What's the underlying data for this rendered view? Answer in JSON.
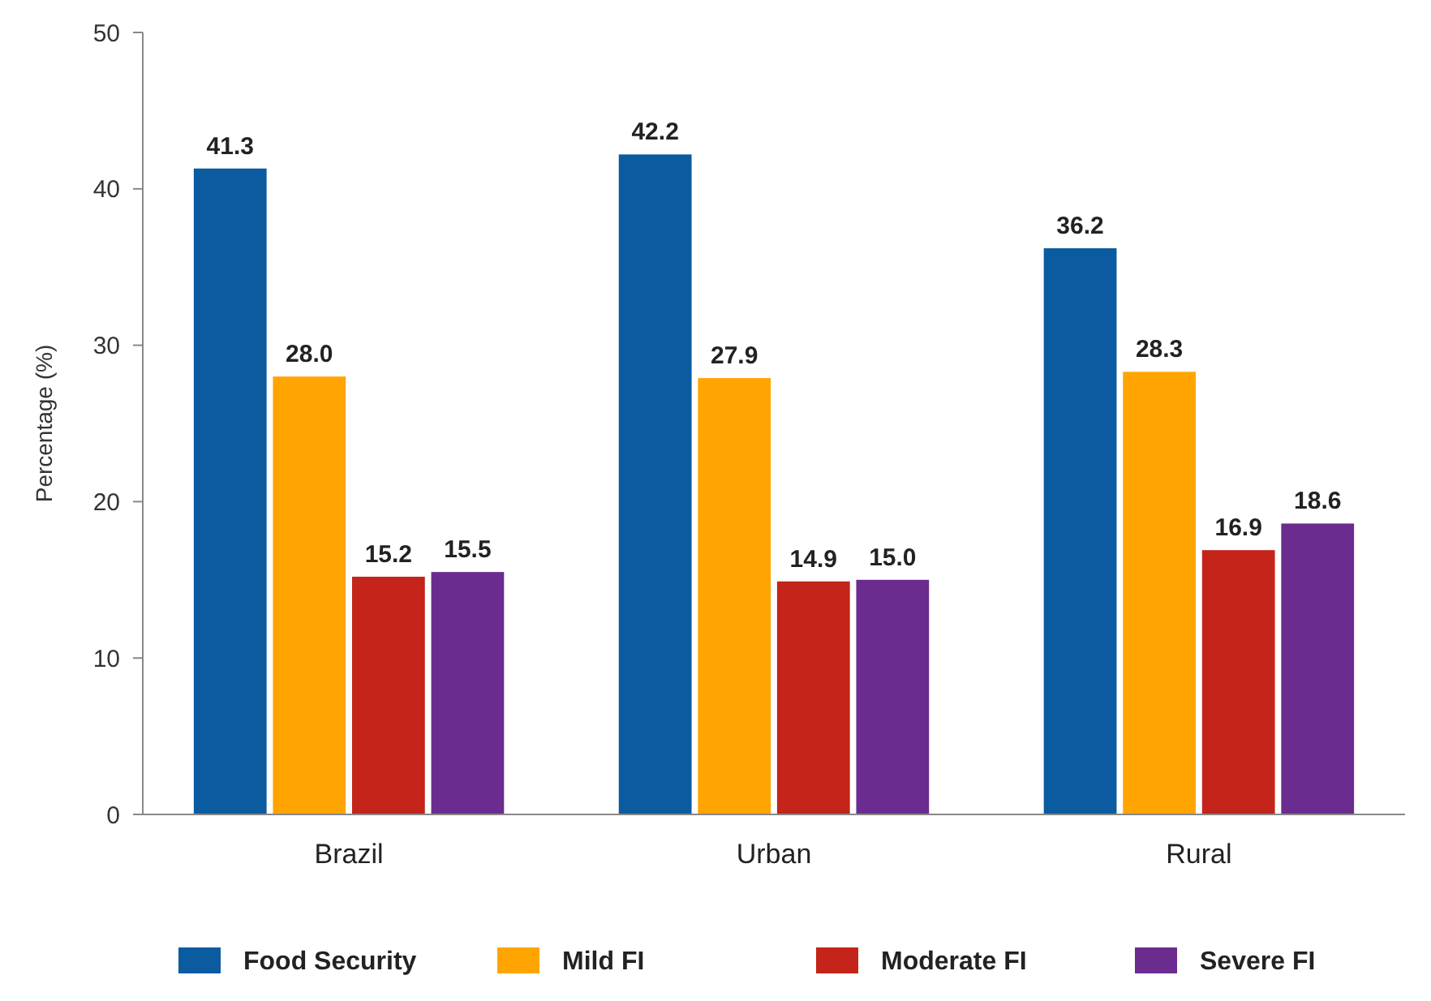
{
  "chart_data": {
    "type": "bar",
    "ylabel": "Percentage (%)",
    "categories": [
      "Brazil",
      "Urban",
      "Rural"
    ],
    "series": [
      {
        "name": "Food Security",
        "color": "#0a5ba0",
        "values": [
          41.3,
          42.2,
          36.2
        ],
        "value_labels": [
          "41.3",
          "42.2",
          "36.2"
        ]
      },
      {
        "name": "Mild FI",
        "color": "#ffa400",
        "values": [
          28.0,
          27.9,
          28.3
        ],
        "value_labels": [
          "28.0",
          "27.9",
          "28.3"
        ]
      },
      {
        "name": "Moderate FI",
        "color": "#c42419",
        "values": [
          15.2,
          14.9,
          16.9
        ],
        "value_labels": [
          "15.2",
          "14.9",
          "16.9"
        ]
      },
      {
        "name": "Severe FI",
        "color": "#6a2c8e",
        "values": [
          15.5,
          15.0,
          18.6
        ],
        "value_labels": [
          "15.5",
          "15.0",
          "18.6"
        ]
      }
    ],
    "ylim": [
      0,
      50
    ],
    "yticks": [
      0,
      10,
      20,
      30,
      40,
      50
    ],
    "grid": false,
    "legend": "bottom"
  }
}
